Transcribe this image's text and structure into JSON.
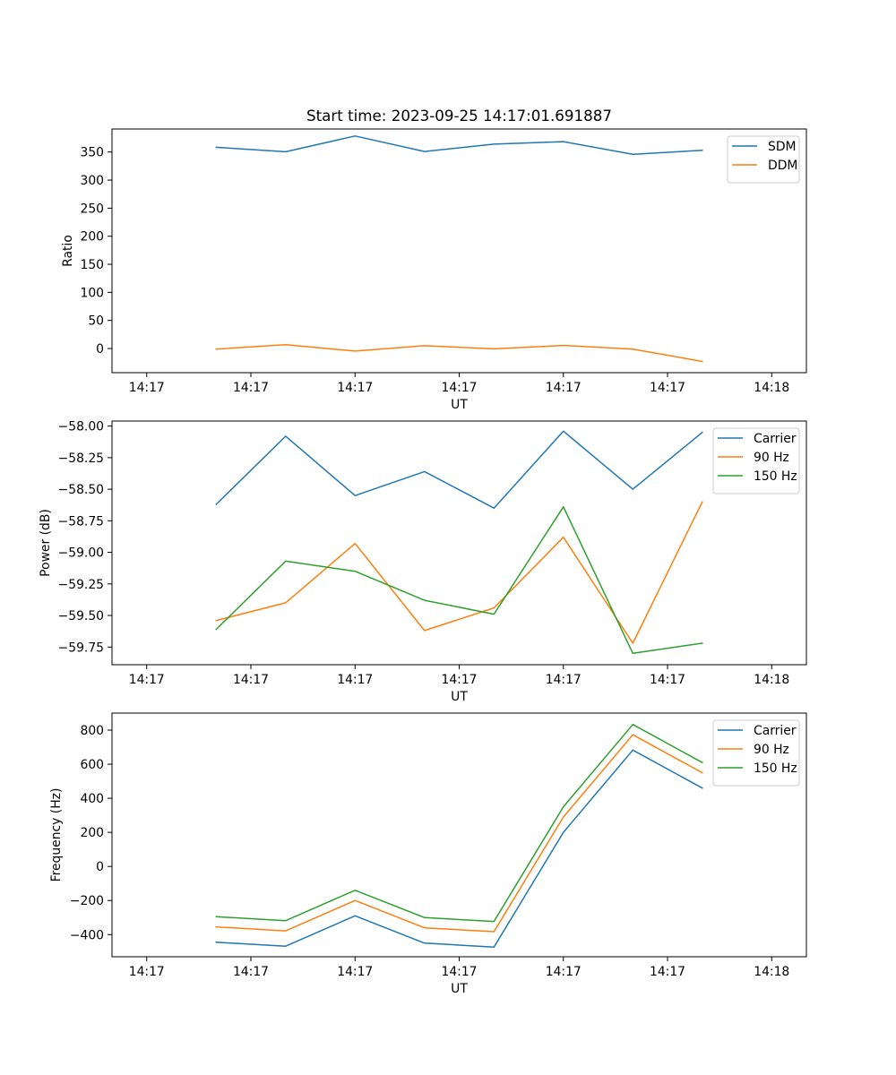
{
  "chart_data": [
    {
      "type": "line",
      "title": "Start time: 2023-09-25 14:17:01.691887",
      "xlabel": "UT",
      "ylabel": "Ratio",
      "x_tick_labels": [
        "14:17",
        "14:17",
        "14:17",
        "14:17",
        "14:17",
        "14:17",
        "14:18"
      ],
      "xlim": [
        -0.5,
        9.5
      ],
      "ylim": [
        -43,
        391
      ],
      "yticks": [
        0,
        50,
        100,
        150,
        200,
        250,
        300,
        350
      ],
      "y_tick_labels": [
        "0",
        "50",
        "100",
        "150",
        "200",
        "250",
        "300",
        "350"
      ],
      "x": [
        1,
        2,
        3,
        4,
        5,
        6,
        7,
        8
      ],
      "series": [
        {
          "name": "SDM",
          "color": "#1f77b4",
          "values": [
            358.5,
            350.5,
            378.5,
            351,
            364,
            368.5,
            346,
            353
          ]
        },
        {
          "name": "DDM",
          "color": "#ff7f0e",
          "values": [
            -1,
            7,
            -4.5,
            5,
            -0.5,
            5.5,
            -1,
            -23
          ]
        }
      ],
      "legend": "top-right",
      "grid": false
    },
    {
      "type": "line",
      "title": "",
      "xlabel": "UT",
      "ylabel": "Power (dB)",
      "x_tick_labels": [
        "14:17",
        "14:17",
        "14:17",
        "14:17",
        "14:17",
        "14:17",
        "14:18"
      ],
      "xlim": [
        -0.5,
        9.5
      ],
      "ylim": [
        -59.89,
        -57.96
      ],
      "yticks": [
        -59.75,
        -59.5,
        -59.25,
        -59.0,
        -58.75,
        -58.5,
        -58.25,
        -58.0
      ],
      "y_tick_labels": [
        "−59.75",
        "−59.50",
        "−59.25",
        "−59.00",
        "−58.75",
        "−58.50",
        "−58.25",
        "−58.00"
      ],
      "x": [
        1,
        2,
        3,
        4,
        5,
        6,
        7,
        8
      ],
      "series": [
        {
          "name": "Carrier",
          "color": "#1f77b4",
          "values": [
            -58.62,
            -58.08,
            -58.55,
            -58.36,
            -58.65,
            -58.04,
            -58.5,
            -58.05
          ]
        },
        {
          "name": "90 Hz",
          "color": "#ff7f0e",
          "values": [
            -59.54,
            -59.4,
            -58.93,
            -59.62,
            -59.44,
            -58.88,
            -59.72,
            -58.6
          ]
        },
        {
          "name": "150 Hz",
          "color": "#2ca02c",
          "values": [
            -59.61,
            -59.07,
            -59.15,
            -59.38,
            -59.49,
            -58.64,
            -59.8,
            -59.72
          ]
        }
      ],
      "legend": "top-right",
      "grid": false
    },
    {
      "type": "line",
      "title": "",
      "xlabel": "UT",
      "ylabel": "Frequency (Hz)",
      "x_tick_labels": [
        "14:17",
        "14:17",
        "14:17",
        "14:17",
        "14:17",
        "14:17",
        "14:18"
      ],
      "xlim": [
        -0.5,
        9.5
      ],
      "ylim": [
        -530,
        900
      ],
      "yticks": [
        -400,
        -200,
        0,
        200,
        400,
        600,
        800
      ],
      "y_tick_labels": [
        "−400",
        "−200",
        "0",
        "200",
        "400",
        "600",
        "800"
      ],
      "x": [
        1,
        2,
        3,
        4,
        5,
        6,
        7,
        8
      ],
      "series": [
        {
          "name": "Carrier",
          "color": "#1f77b4",
          "values": [
            -445,
            -468,
            -290,
            -450,
            -473,
            200,
            683,
            460
          ]
        },
        {
          "name": "90 Hz",
          "color": "#ff7f0e",
          "values": [
            -355,
            -378,
            -200,
            -360,
            -383,
            290,
            773,
            550
          ]
        },
        {
          "name": "150 Hz",
          "color": "#2ca02c",
          "values": [
            -295,
            -318,
            -140,
            -300,
            -323,
            350,
            833,
            610
          ]
        }
      ],
      "legend": "top-right",
      "grid": false
    }
  ]
}
